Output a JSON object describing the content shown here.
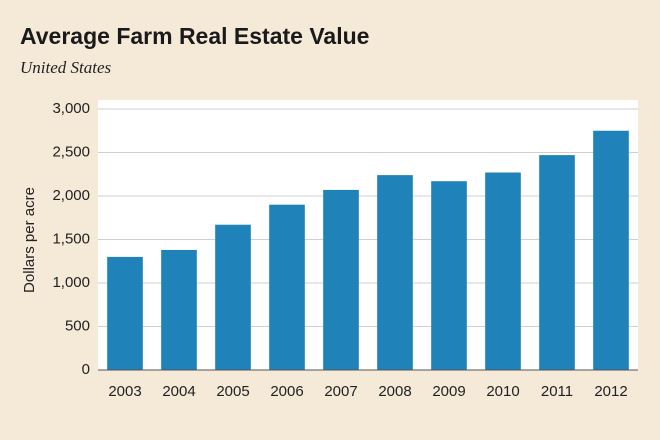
{
  "chart_data": {
    "type": "bar",
    "title": "Average Farm Real Estate Value",
    "subtitle": "United States",
    "y_label": "Dollars per acre",
    "categories": [
      "2003",
      "2004",
      "2005",
      "2006",
      "2007",
      "2008",
      "2009",
      "2010",
      "2011",
      "2012"
    ],
    "values": [
      1300,
      1380,
      1670,
      1900,
      2070,
      2240,
      2170,
      2270,
      2470,
      2750
    ],
    "color": "#1f82b9",
    "ylim": [
      0,
      3000
    ],
    "yticks": [
      0,
      500,
      {
        "value": 1000,
        "label": "1,000"
      },
      {
        "value": 1500,
        "label": "1,500"
      },
      {
        "value": 2000,
        "label": "2,000"
      },
      {
        "value": 2500,
        "label": "2,500"
      },
      {
        "value": 3000,
        "label": "3,000"
      }
    ],
    "grid": true
  }
}
